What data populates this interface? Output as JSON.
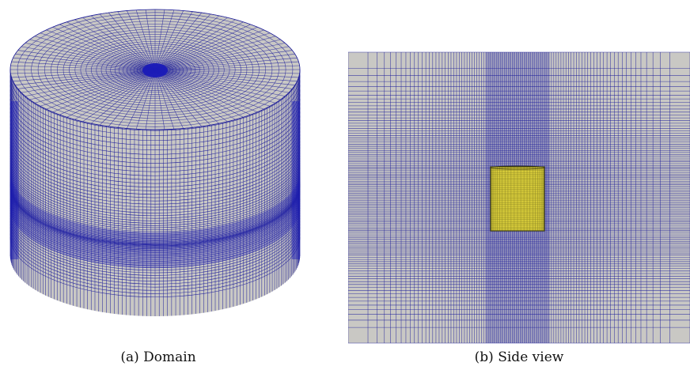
{
  "figure": {
    "panel_a": {
      "caption": "(a) Domain"
    },
    "panel_b": {
      "caption": "(b) Side view"
    }
  },
  "colors": {
    "mesh_face": "#c9c8c4",
    "mesh_line": "#1f1f9a",
    "mesh_dense": "#1a1ab8",
    "cylinder_fill": "#d8cc3a",
    "cylinder_line": "#3a3a10",
    "background": "#ffffff"
  }
}
